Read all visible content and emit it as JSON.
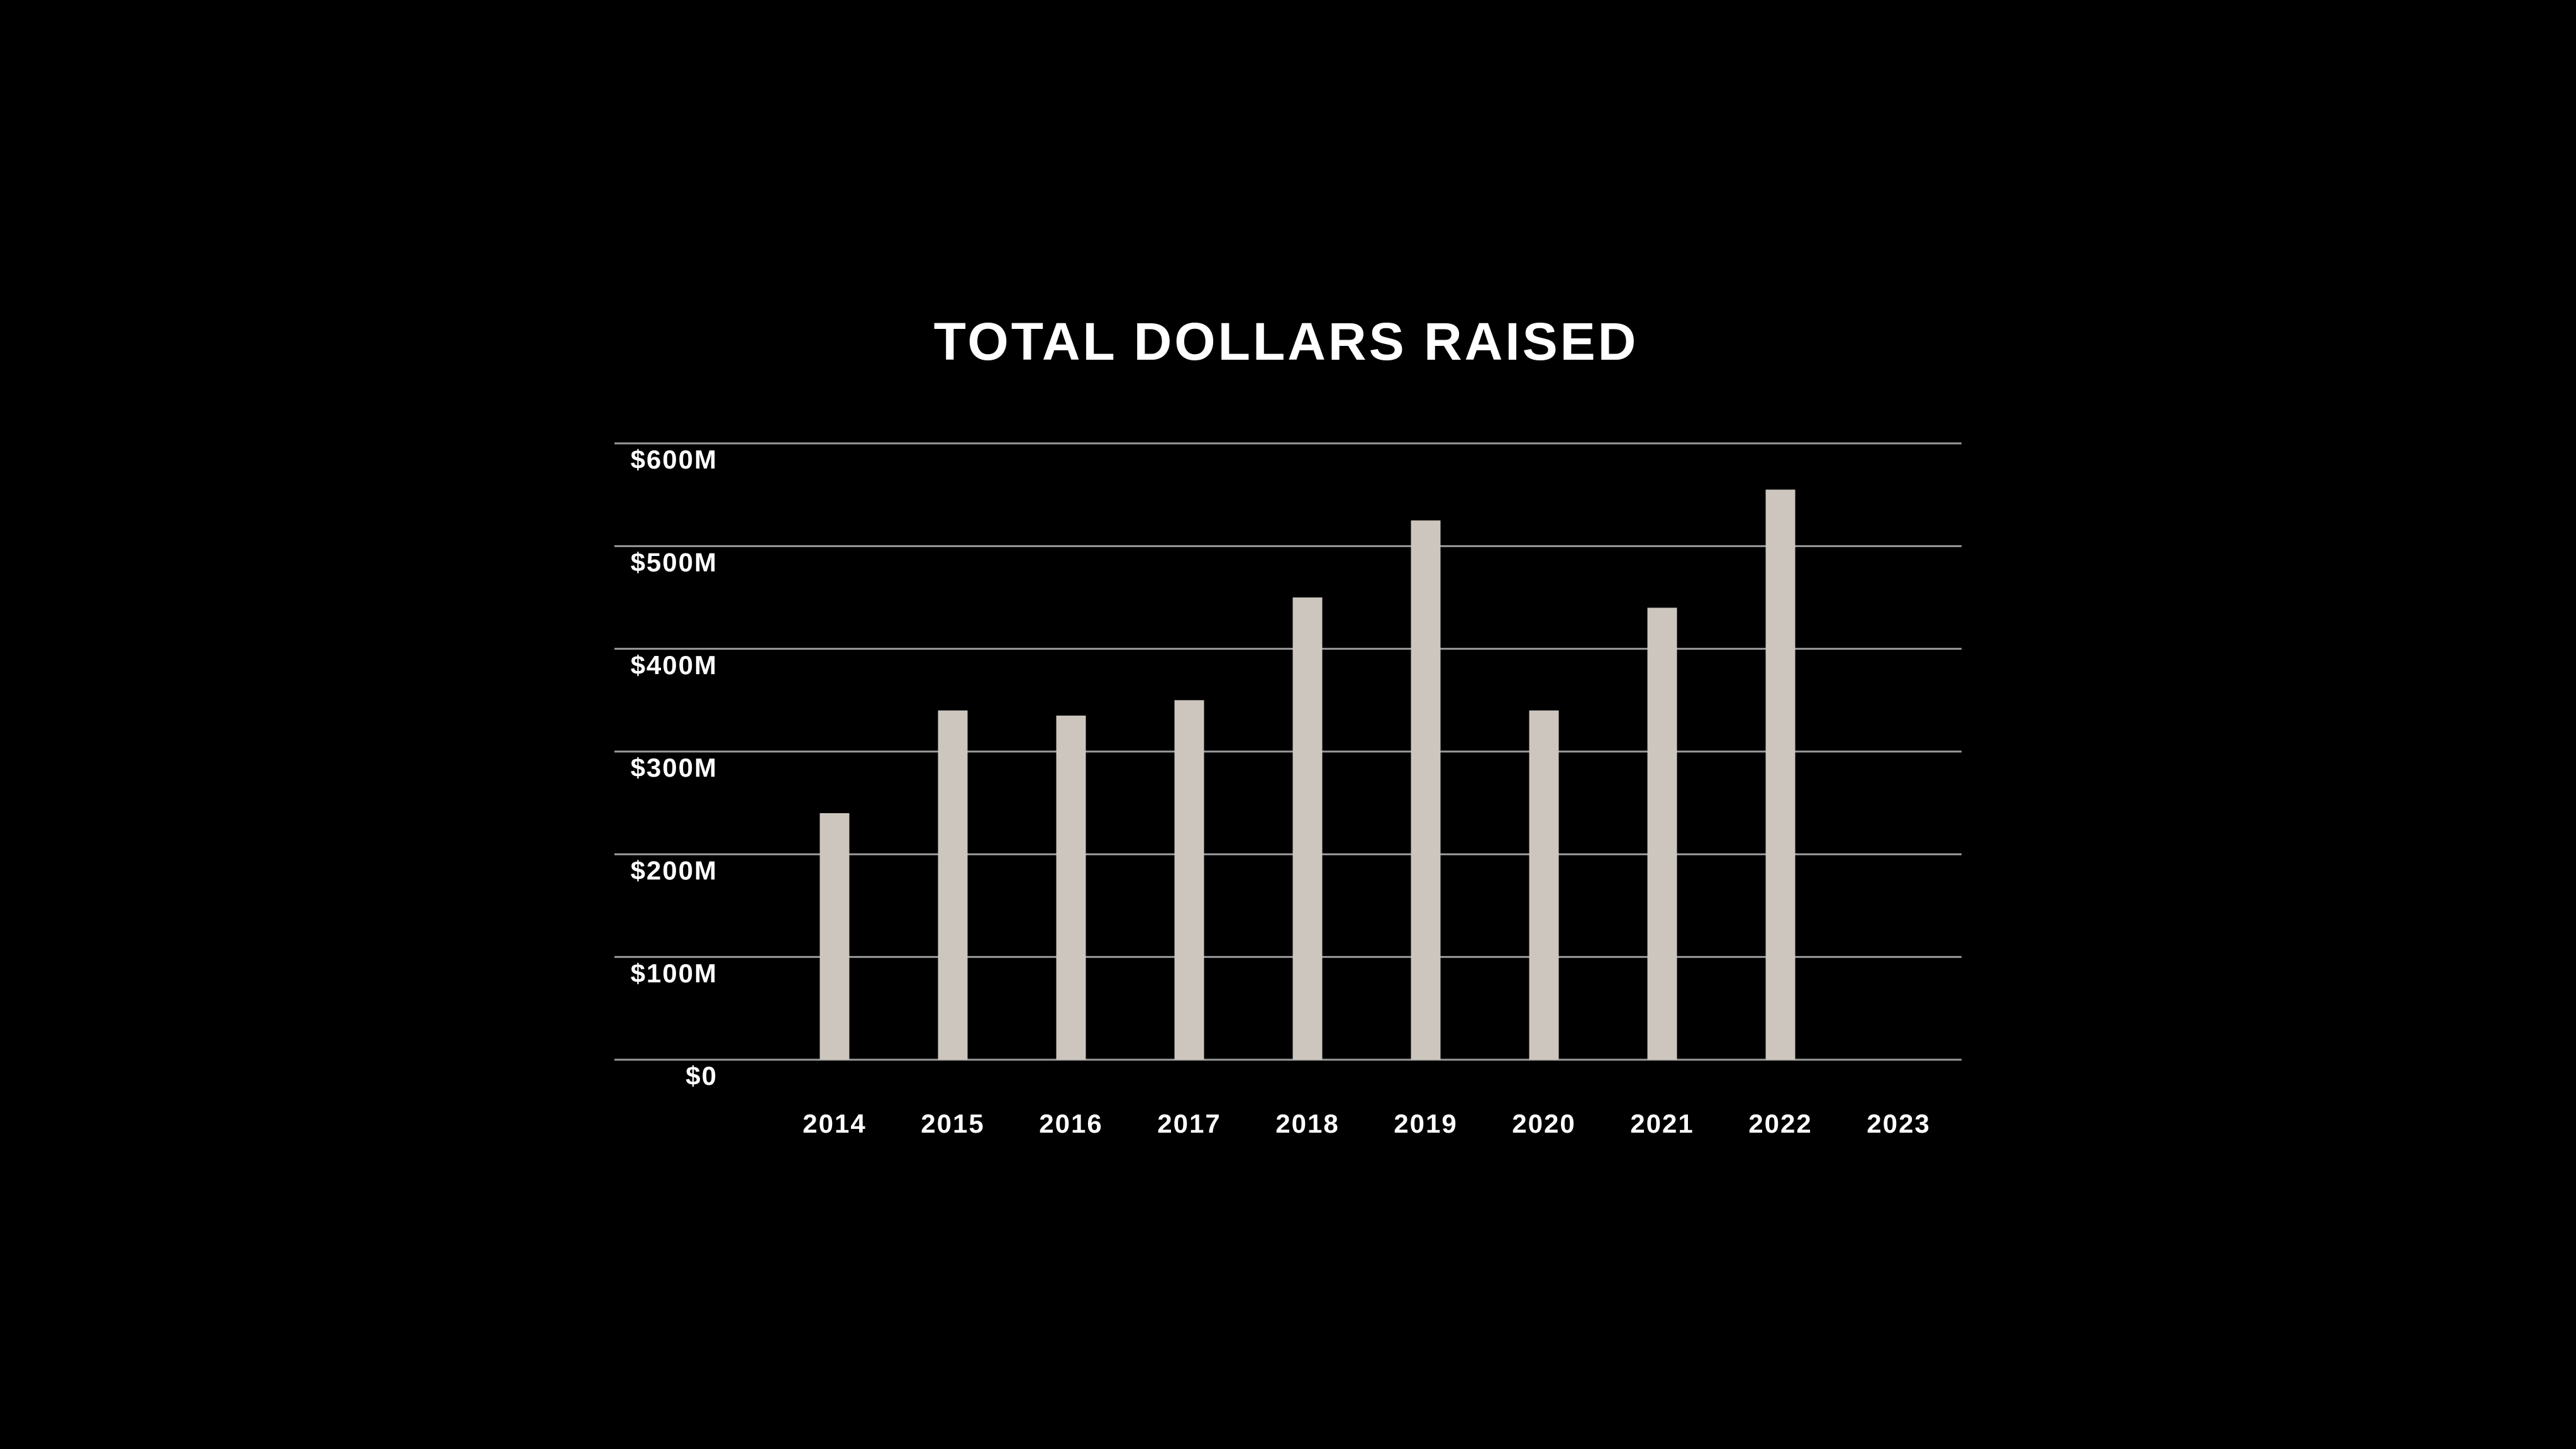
{
  "chart_data": {
    "type": "bar",
    "title": "TOTAL DOLLARS RAISED",
    "categories": [
      "2014",
      "2015",
      "2016",
      "2017",
      "2018",
      "2019",
      "2020",
      "2021",
      "2022",
      "2023"
    ],
    "values": [
      240000000,
      340000000,
      335000000,
      350000000,
      450000000,
      525000000,
      340000000,
      440000000,
      555000000,
      null
    ],
    "color": "#cdc6be",
    "ylim": [
      0,
      600000000
    ],
    "yticks": [
      {
        "value": 0,
        "label": "$0"
      },
      {
        "value": 100000000,
        "label": "$100M"
      },
      {
        "value": 200000000,
        "label": "$200M"
      },
      {
        "value": 300000000,
        "label": "$300M"
      },
      {
        "value": 400000000,
        "label": "$400M"
      },
      {
        "value": 500000000,
        "label": "$500M"
      },
      {
        "value": 600000000,
        "label": "$600M"
      }
    ],
    "grid": true
  }
}
